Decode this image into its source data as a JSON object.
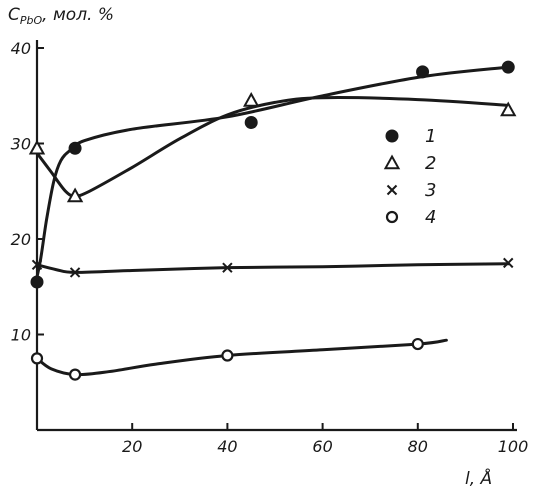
{
  "chart_data": {
    "type": "line",
    "ylabel": "C",
    "ylabel_sub": "PbO",
    "ylabel_unit": ", мол. %",
    "xlabel": "l, Å",
    "xlim": [
      0,
      100
    ],
    "ylim": [
      0,
      40
    ],
    "x_ticks": [
      20,
      40,
      60,
      80,
      100
    ],
    "y_ticks": [
      10,
      20,
      30,
      40
    ],
    "grid": false,
    "legend_position": "right",
    "series": [
      {
        "name": "1",
        "marker": "filled-circle",
        "points": [
          [
            0,
            15.5
          ],
          [
            8,
            29.5
          ],
          [
            45,
            32.2
          ],
          [
            81,
            37.5
          ],
          [
            99,
            38
          ]
        ],
        "curve": [
          [
            0,
            16
          ],
          [
            0.8,
            18
          ],
          [
            2,
            22
          ],
          [
            3.5,
            26
          ],
          [
            5,
            28.2
          ],
          [
            7,
            29.3
          ],
          [
            10,
            30.3
          ],
          [
            20,
            31.5
          ],
          [
            40,
            32.8
          ],
          [
            60,
            35
          ],
          [
            81,
            37
          ],
          [
            99,
            38
          ]
        ]
      },
      {
        "name": "2",
        "marker": "open-triangle",
        "points": [
          [
            0,
            29.5
          ],
          [
            8,
            24.5
          ],
          [
            45,
            34.5
          ],
          [
            99,
            33.5
          ]
        ],
        "curve": [
          [
            0,
            29
          ],
          [
            3,
            27
          ],
          [
            6,
            25
          ],
          [
            8,
            24.5
          ],
          [
            11,
            25
          ],
          [
            20,
            27.5
          ],
          [
            30,
            30.5
          ],
          [
            40,
            33
          ],
          [
            50,
            34.3
          ],
          [
            60,
            34.8
          ],
          [
            80,
            34.6
          ],
          [
            99,
            34
          ]
        ]
      },
      {
        "name": "3",
        "marker": "cross",
        "points": [
          [
            0,
            17.3
          ],
          [
            8,
            16.5
          ],
          [
            40,
            17
          ],
          [
            99,
            17.5
          ]
        ],
        "curve": [
          [
            0,
            17.3
          ],
          [
            4,
            16.8
          ],
          [
            8,
            16.5
          ],
          [
            20,
            16.7
          ],
          [
            40,
            17
          ],
          [
            60,
            17.1
          ],
          [
            80,
            17.3
          ],
          [
            99,
            17.4
          ]
        ]
      },
      {
        "name": "4",
        "marker": "open-circle",
        "points": [
          [
            0,
            7.5
          ],
          [
            8,
            5.8
          ],
          [
            40,
            7.8
          ],
          [
            80,
            9
          ]
        ],
        "curve": [
          [
            0,
            7.5
          ],
          [
            3,
            6.4
          ],
          [
            8,
            5.8
          ],
          [
            15,
            6.1
          ],
          [
            25,
            6.9
          ],
          [
            40,
            7.8
          ],
          [
            60,
            8.4
          ],
          [
            80,
            9
          ],
          [
            86,
            9.4
          ]
        ]
      }
    ]
  }
}
